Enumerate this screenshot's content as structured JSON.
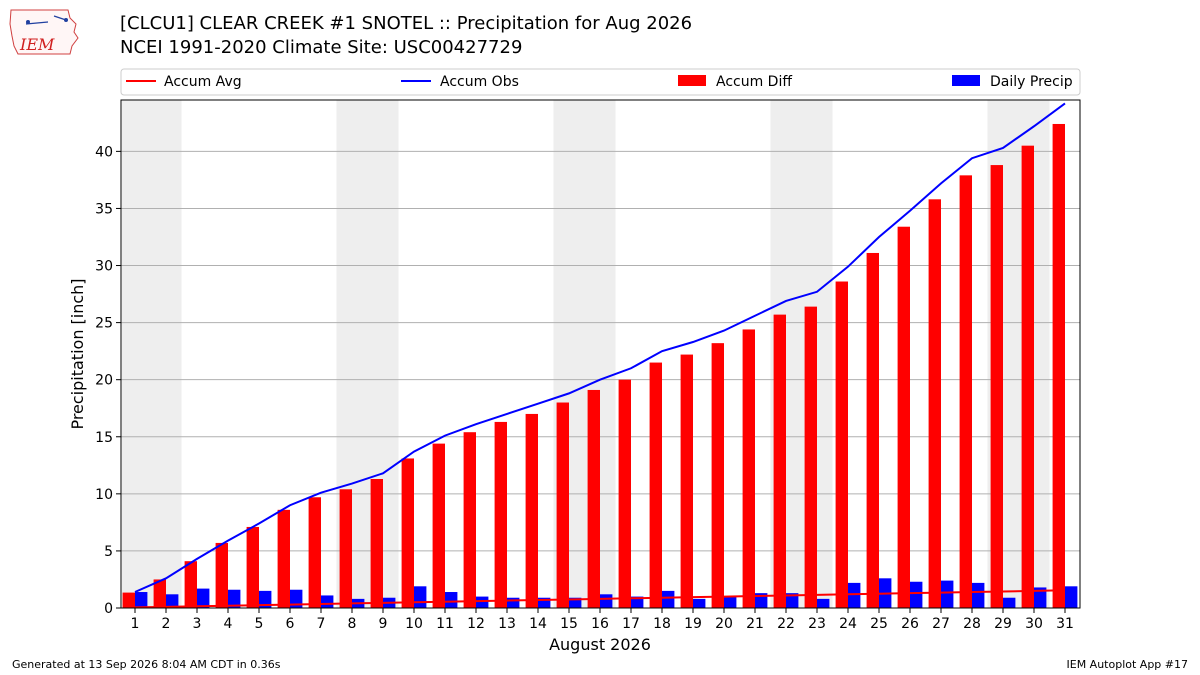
{
  "header": {
    "title_line1": "[CLCU1] CLEAR CREEK #1 SNOTEL :: Precipitation for Aug 2026",
    "title_line2": "NCEI 1991-2020 Climate Site: USC00427729",
    "logo_text": "IEM"
  },
  "footer": {
    "left": "Generated at 13 Sep 2026 8:04 AM CDT in 0.36s",
    "right": "IEM Autoplot App #17"
  },
  "colors": {
    "avg": "#ff0000",
    "obs": "#0000ff",
    "diff": "#ff0000",
    "daily": "#0000ff",
    "weekend_shade": "#eeeeee",
    "grid": "#b0b0b0"
  },
  "chart_data": {
    "type": "bar",
    "xlabel": "August 2026",
    "ylabel": "Precipitation [inch]",
    "ylim": [
      0,
      44.5
    ],
    "yticks": [
      0,
      5,
      10,
      15,
      20,
      25,
      30,
      35,
      40
    ],
    "grid": true,
    "legend_placement": "top",
    "shaded_days": [
      [
        1,
        2
      ],
      [
        8,
        9
      ],
      [
        15,
        16
      ],
      [
        22,
        23
      ],
      [
        29,
        30
      ]
    ],
    "categories": [
      "1",
      "2",
      "3",
      "4",
      "5",
      "6",
      "7",
      "8",
      "9",
      "10",
      "11",
      "12",
      "13",
      "14",
      "15",
      "16",
      "17",
      "18",
      "19",
      "20",
      "21",
      "22",
      "23",
      "24",
      "25",
      "26",
      "27",
      "28",
      "29",
      "30",
      "31"
    ],
    "series": [
      {
        "name": "Accum Avg",
        "kind": "line",
        "values": [
          0.05,
          0.1,
          0.15,
          0.2,
          0.25,
          0.3,
          0.35,
          0.4,
          0.45,
          0.5,
          0.55,
          0.6,
          0.65,
          0.7,
          0.75,
          0.8,
          0.85,
          0.9,
          0.95,
          1.0,
          1.05,
          1.1,
          1.15,
          1.2,
          1.25,
          1.3,
          1.35,
          1.4,
          1.45,
          1.5,
          1.55
        ]
      },
      {
        "name": "Accum Obs",
        "kind": "line",
        "values": [
          1.4,
          2.6,
          4.3,
          5.9,
          7.4,
          9.0,
          10.1,
          10.9,
          11.8,
          13.7,
          15.1,
          16.1,
          17.0,
          17.9,
          18.8,
          20.0,
          21.0,
          22.5,
          23.3,
          24.3,
          25.6,
          26.9,
          27.7,
          29.9,
          32.5,
          34.8,
          37.2,
          39.4,
          40.3,
          42.2,
          44.2
        ]
      },
      {
        "name": "Accum Diff",
        "kind": "bar",
        "values": [
          1.35,
          2.5,
          4.1,
          5.7,
          7.1,
          8.6,
          9.7,
          10.4,
          11.3,
          13.1,
          14.4,
          15.4,
          16.3,
          17.0,
          18.0,
          19.1,
          20.0,
          21.5,
          22.2,
          23.2,
          24.4,
          25.7,
          26.4,
          28.6,
          31.1,
          33.4,
          35.8,
          37.9,
          38.8,
          40.5,
          42.4
        ]
      },
      {
        "name": "Daily Precip",
        "kind": "bar",
        "values": [
          1.4,
          1.2,
          1.7,
          1.6,
          1.5,
          1.6,
          1.1,
          0.8,
          0.9,
          1.9,
          1.4,
          1.0,
          0.9,
          0.9,
          0.9,
          1.2,
          1.0,
          1.5,
          0.8,
          1.0,
          1.3,
          1.3,
          0.8,
          2.2,
          2.6,
          2.3,
          2.4,
          2.2,
          0.9,
          1.8,
          1.9
        ]
      }
    ]
  }
}
